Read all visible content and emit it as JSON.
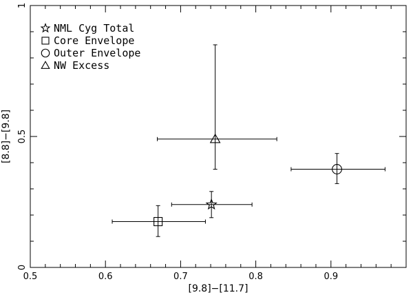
{
  "chart_data": {
    "type": "scatter",
    "title": "",
    "xlabel": "[9.8]−[11.7]",
    "ylabel": "[8.8]−[9.8]",
    "xlim": [
      0.5,
      1.0
    ],
    "ylim": [
      0,
      1
    ],
    "x_ticks": {
      "major": [
        0.5,
        0.6,
        0.7,
        0.8,
        0.9
      ],
      "labels": [
        "0.5",
        "0.6",
        "0.7",
        "0.8",
        "0.9"
      ],
      "minor_step": 0.02
    },
    "y_ticks": {
      "major": [
        0,
        0.5,
        1
      ],
      "labels": [
        "0",
        "0.5",
        "1"
      ],
      "minor_step": 0.1
    },
    "grid": false,
    "legend_position": "top-left",
    "series": [
      {
        "name": "NML Cyg Total",
        "marker": "star",
        "x": 0.741,
        "y": 0.24,
        "xerr": [
          0.688,
          0.795
        ],
        "yerr": [
          0.19,
          0.29
        ]
      },
      {
        "name": "Core Envelope",
        "marker": "square",
        "x": 0.67,
        "y": 0.175,
        "xerr": [
          0.609,
          0.733
        ],
        "yerr": [
          0.118,
          0.236
        ]
      },
      {
        "name": "Outer Envelope",
        "marker": "circle",
        "x": 0.908,
        "y": 0.375,
        "xerr": [
          0.847,
          0.972
        ],
        "yerr": [
          0.32,
          0.435
        ]
      },
      {
        "name": "NW Excess",
        "marker": "triangle",
        "x": 0.746,
        "y": 0.49,
        "xerr": [
          0.669,
          0.828
        ],
        "yerr": [
          0.375,
          0.85
        ]
      }
    ]
  }
}
